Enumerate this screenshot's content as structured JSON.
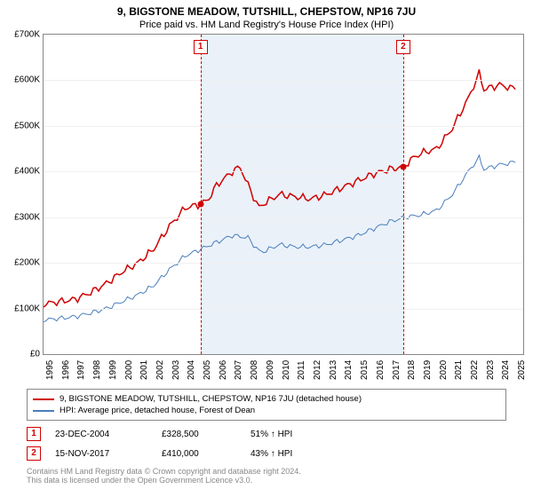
{
  "title": "9, BIGSTONE MEADOW, TUTSHILL, CHEPSTOW, NP16 7JU",
  "subtitle": "Price paid vs. HM Land Registry's House Price Index (HPI)",
  "chart": {
    "type": "line",
    "background_color": "#ffffff",
    "shaded_color": "#eaf1f9",
    "grid_color": "#f0f0f0",
    "border_color": "#888888",
    "ylim": [
      0,
      700000
    ],
    "ytick_step": 100000,
    "yticks": [
      "£0",
      "£100K",
      "£200K",
      "£300K",
      "£400K",
      "£500K",
      "£600K",
      "£700K"
    ],
    "xlim": [
      1995,
      2025.5
    ],
    "xticks": [
      "1995",
      "1996",
      "1997",
      "1998",
      "1999",
      "2000",
      "2001",
      "2002",
      "2003",
      "2004",
      "2005",
      "2006",
      "2007",
      "2008",
      "2009",
      "2010",
      "2011",
      "2012",
      "2013",
      "2014",
      "2015",
      "2016",
      "2017",
      "2018",
      "2019",
      "2020",
      "2021",
      "2022",
      "2023",
      "2024",
      "2025"
    ],
    "series": [
      {
        "name": "property",
        "label": "9, BIGSTONE MEADOW, TUTSHILL, CHEPSTOW, NP16 7JU (detached house)",
        "color": "#d00000",
        "width": 1.5,
        "x": [
          1995,
          1996,
          1997,
          1998,
          1999,
          2000,
          2001,
          2002,
          2003,
          2004,
          2004.98,
          2005.5,
          2006,
          2007,
          2007.5,
          2008,
          2008.7,
          2009,
          2010,
          2011,
          2012,
          2013,
          2014,
          2015,
          2016,
          2017,
          2017.87,
          2018.5,
          2019,
          2020,
          2021,
          2022,
          2022.7,
          2023,
          2024,
          2025
        ],
        "y": [
          110,
          115,
          120,
          135,
          155,
          180,
          200,
          230,
          280,
          320,
          328.5,
          340,
          370,
          400,
          410,
          370,
          320,
          330,
          350,
          345,
          340,
          350,
          365,
          380,
          395,
          405,
          410,
          430,
          440,
          450,
          495,
          560,
          615,
          580,
          590,
          580
        ]
      },
      {
        "name": "hpi",
        "label": "HPI: Average price, detached house, Forest of Dean",
        "color": "#4a7ebb",
        "width": 1,
        "x": [
          1995,
          1996,
          1997,
          1998,
          1999,
          2000,
          2001,
          2002,
          2003,
          2004,
          2005,
          2006,
          2007,
          2008,
          2008.7,
          2009,
          2010,
          2011,
          2012,
          2013,
          2014,
          2015,
          2016,
          2017,
          2018,
          2019,
          2020,
          2021,
          2022,
          2022.7,
          2023,
          2024,
          2025
        ],
        "y": [
          75,
          78,
          82,
          90,
          100,
          115,
          130,
          150,
          185,
          215,
          230,
          245,
          260,
          255,
          225,
          225,
          240,
          235,
          235,
          240,
          250,
          260,
          275,
          290,
          300,
          305,
          315,
          350,
          400,
          430,
          405,
          415,
          420
        ]
      }
    ],
    "sale_points": [
      {
        "n": "1",
        "x": 2004.98,
        "y": 328.5
      },
      {
        "n": "2",
        "x": 2017.87,
        "y": 410
      }
    ],
    "marker_color": "#d00000",
    "vline_dash": "dashed",
    "title_fontsize": 12,
    "subtitle_fontsize": 11,
    "axis_fontsize": 10
  },
  "legend": {
    "items": [
      {
        "color": "#d00000",
        "label": "9, BIGSTONE MEADOW, TUTSHILL, CHEPSTOW, NP16 7JU (detached house)"
      },
      {
        "color": "#4a7ebb",
        "label": "HPI: Average price, detached house, Forest of Dean"
      }
    ]
  },
  "sales": [
    {
      "n": "1",
      "date": "23-DEC-2004",
      "price": "£328,500",
      "hpi": "51% ↑ HPI"
    },
    {
      "n": "2",
      "date": "15-NOV-2017",
      "price": "£410,000",
      "hpi": "43% ↑ HPI"
    }
  ],
  "footer": {
    "line1": "Contains HM Land Registry data © Crown copyright and database right 2024.",
    "line2": "This data is licensed under the Open Government Licence v3.0."
  }
}
